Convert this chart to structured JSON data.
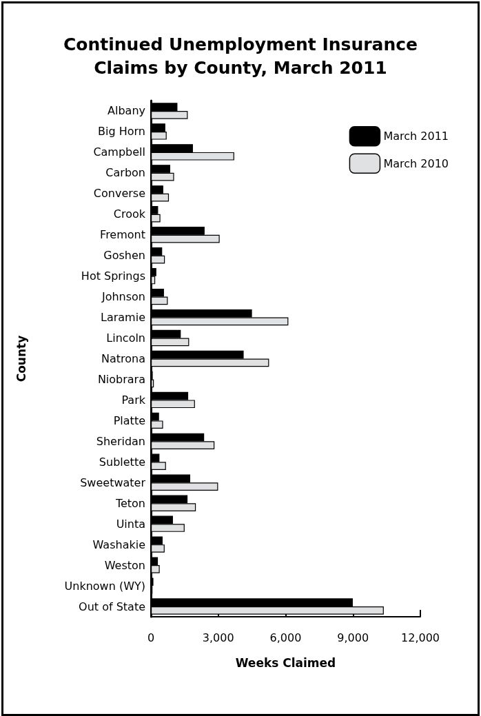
{
  "chart_data": {
    "type": "bar",
    "orientation": "horizontal",
    "title": "Continued Unemployment Insurance\nClaims by County, March 2011",
    "xlabel": "Weeks Claimed",
    "ylabel": "County",
    "categories": [
      "Albany",
      "Big Horn",
      "Campbell",
      "Carbon",
      "Converse",
      "Crook",
      "Fremont",
      "Goshen",
      "Hot Springs",
      "Johnson",
      "Laramie",
      "Lincoln",
      "Natrona",
      "Niobrara",
      "Park",
      "Platte",
      "Sheridan",
      "Sublette",
      "Sweetwater",
      "Teton",
      "Uinta",
      "Washakie",
      "Weston",
      "Unknown (WY)",
      "Out of State"
    ],
    "series": [
      {
        "name": "March 2011",
        "color": "#000000",
        "values": [
          1180,
          640,
          1870,
          860,
          550,
          320,
          2390,
          500,
          240,
          580,
          4500,
          1330,
          4130,
          80,
          1660,
          360,
          2370,
          380,
          1750,
          1630,
          980,
          520,
          310,
          110,
          8990
        ]
      },
      {
        "name": "March 2010",
        "color": "#e0e1e3",
        "values": [
          1640,
          700,
          3710,
          1030,
          800,
          420,
          3060,
          620,
          190,
          750,
          6120,
          1700,
          5260,
          130,
          1960,
          540,
          2830,
          670,
          2990,
          2000,
          1500,
          610,
          390,
          70,
          10370
        ]
      }
    ],
    "xlim": [
      0,
      12000
    ],
    "xticks": [
      0,
      {
        "value": 3000,
        "label": "3,000"
      },
      {
        "value": 6000,
        "label": "6,000"
      },
      {
        "value": 9000,
        "label": "9,000"
      },
      {
        "value": 12000,
        "label": "12,000"
      }
    ],
    "grid": false,
    "legend": "top right"
  }
}
